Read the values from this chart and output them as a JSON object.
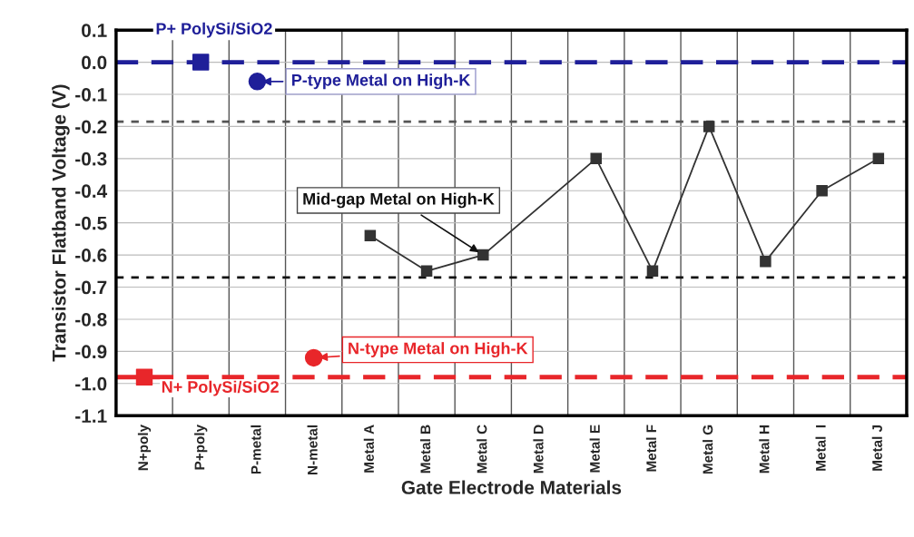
{
  "chart_data": {
    "type": "scatter",
    "xlabel": "Gate Electrode Materials",
    "ylabel": "Transistor Flatband Voltage (V)",
    "categories": [
      "N+poly",
      "P+poly",
      "P-metal",
      "N-metal",
      "Metal A",
      "Metal B",
      "Metal C",
      "Metal D",
      "Metal E",
      "Metal F",
      "Metal G",
      "Metal H",
      "Metal  I",
      "Metal J"
    ],
    "series": [
      {
        "marker": "square",
        "color": "#e8262a",
        "values": [
          -0.98,
          null,
          null,
          null,
          null,
          null,
          null,
          null,
          null,
          null,
          null,
          null,
          null,
          null
        ]
      },
      {
        "marker": "square",
        "color": "#1f1f99",
        "values": [
          null,
          0.0,
          null,
          null,
          null,
          null,
          null,
          null,
          null,
          null,
          null,
          null,
          null,
          null
        ]
      },
      {
        "marker": "circle",
        "color": "#1f1f99",
        "values": [
          null,
          null,
          -0.06,
          null,
          null,
          null,
          null,
          null,
          null,
          null,
          null,
          null,
          null,
          null
        ]
      },
      {
        "marker": "circle",
        "color": "#e8262a",
        "values": [
          null,
          null,
          null,
          -0.92,
          null,
          null,
          null,
          null,
          null,
          null,
          null,
          null,
          null,
          null
        ]
      },
      {
        "type": "line",
        "marker": "square",
        "line_style": "solid",
        "color": "#333333",
        "values": [
          null,
          null,
          null,
          null,
          -0.54,
          -0.65,
          -0.6,
          null,
          -0.3,
          -0.65,
          -0.2,
          -0.62,
          -0.4,
          -0.3
        ]
      }
    ],
    "ylim": [
      -1.1,
      0.1
    ],
    "yticks": [
      {
        "value": 0.1,
        "label": "0.1"
      },
      {
        "value": 0.0,
        "label": "0.0"
      },
      {
        "value": -0.1,
        "label": "-0.1"
      },
      {
        "value": -0.2,
        "label": "-0.2"
      },
      {
        "value": -0.3,
        "label": "-0.3"
      },
      {
        "value": -0.4,
        "label": "-0.4"
      },
      {
        "value": -0.5,
        "label": "-0.5"
      },
      {
        "value": -0.6,
        "label": "-0.6"
      },
      {
        "value": -0.7,
        "label": "-0.7"
      },
      {
        "value": -0.8,
        "label": "-0.8"
      },
      {
        "value": -0.9,
        "label": "-0.9"
      },
      {
        "value": -1.0,
        "label": "-1.0"
      },
      {
        "value": -1.1,
        "label": "-1.1"
      }
    ],
    "ref_lines": [
      {
        "axis": "y",
        "value": 0.0,
        "label": "P+ PolySi/SiO2",
        "color": "#1f1f99",
        "line_style": "dashed"
      },
      {
        "axis": "y",
        "value": -0.98,
        "label": "N+ PolySi/SiO2",
        "color": "#e8262a",
        "line_style": "dashed"
      },
      {
        "axis": "y",
        "value": -0.185,
        "color": "#555555",
        "line_style": "dotted"
      },
      {
        "axis": "y",
        "value": -0.67,
        "color": "#111111",
        "line_style": "dotted"
      }
    ],
    "annotations": [
      {
        "text": "P-type Metal on High-K",
        "x": "P-metal",
        "y": -0.06
      },
      {
        "text": "Mid-gap Metal on High-K",
        "x": "Metal C",
        "y": -0.6
      },
      {
        "text": "N-type Metal on High-K",
        "x": "N-metal",
        "y": -0.92
      }
    ],
    "grid": true,
    "legend": false
  }
}
